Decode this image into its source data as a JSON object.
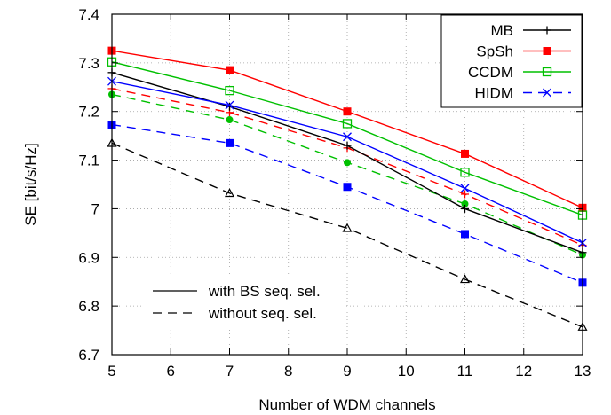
{
  "chart_data": {
    "type": "line",
    "xlabel": "Number of WDM channels",
    "ylabel": "SE [bit/s/Hz]",
    "x": [
      5,
      7,
      9,
      11,
      13
    ],
    "xlim": [
      5,
      13
    ],
    "ylim": [
      6.7,
      7.4
    ],
    "xticks": [
      "5",
      "6",
      "7",
      "8",
      "9",
      "10",
      "11",
      "12",
      "13"
    ],
    "yticks": [
      "6.7",
      "6.8",
      "6.9",
      "7",
      "7.1",
      "7.2",
      "7.3",
      "7.4"
    ],
    "grid": true,
    "legend_placement": "top-right",
    "series": [
      {
        "name": "MB",
        "color": "#000000",
        "marker": "plus",
        "style": "solid",
        "values": [
          7.28,
          7.21,
          7.13,
          7.0,
          6.91
        ]
      },
      {
        "name": "SpSh",
        "color": "#ff0000",
        "marker": "filled-square",
        "style": "solid",
        "values": [
          7.325,
          7.285,
          7.2,
          7.113,
          7.002
        ]
      },
      {
        "name": "CCDM",
        "color": "#00c000",
        "marker": "open-square",
        "style": "solid",
        "values": [
          7.302,
          7.243,
          7.175,
          7.075,
          6.987
        ]
      },
      {
        "name": "HIDM",
        "color": "#0000ff",
        "marker": "x",
        "style": "solid",
        "values": [
          7.262,
          7.213,
          7.148,
          7.042,
          6.93
        ]
      },
      {
        "name": "",
        "color": "#000000",
        "marker": "open-triangle",
        "style": "dashed",
        "values": [
          7.135,
          7.032,
          6.96,
          6.855,
          6.757
        ]
      },
      {
        "name": "",
        "color": "#ff0000",
        "marker": "plus",
        "style": "dashed",
        "values": [
          7.247,
          7.198,
          7.125,
          7.03,
          6.925
        ]
      },
      {
        "name": "",
        "color": "#00c000",
        "marker": "filled-circle",
        "style": "dashed",
        "values": [
          7.235,
          7.183,
          7.095,
          7.01,
          6.905
        ]
      },
      {
        "name": "",
        "color": "#0000ff",
        "marker": "filled-square",
        "style": "dashed",
        "values": [
          7.173,
          7.135,
          7.045,
          6.948,
          6.848
        ]
      }
    ],
    "style_legend": [
      {
        "label": "with BS seq. sel.",
        "style": "solid"
      },
      {
        "label": "without seq. sel.",
        "style": "dashed"
      }
    ]
  }
}
